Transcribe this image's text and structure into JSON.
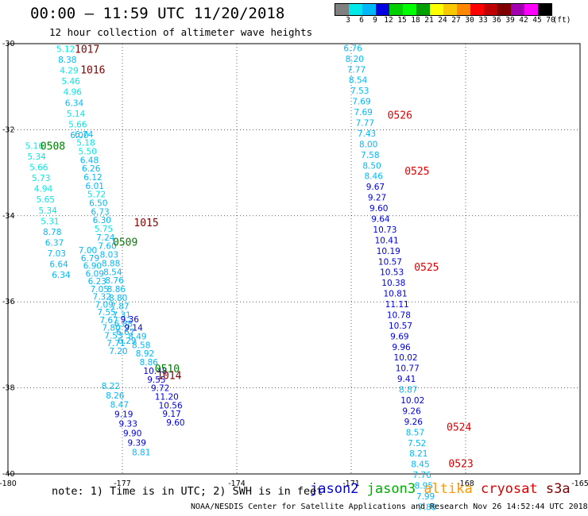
{
  "header": {
    "title": "00:00 – 11:59 UTC 11/20/2018",
    "subtitle": "12 hour collection of altimeter wave heights"
  },
  "colorbar": {
    "colors": [
      "#808080",
      "#00e8e8",
      "#00b8f8",
      "#0000e0",
      "#00d000",
      "#00ff00",
      "#00a000",
      "#ffff00",
      "#f8c800",
      "#ff8800",
      "#ff0000",
      "#c00000",
      "#800000",
      "#a000b0",
      "#ff00ff",
      "#000000"
    ],
    "labels": [
      "3",
      "6",
      "9",
      "12",
      "15",
      "18",
      "21",
      "24",
      "27",
      "30",
      "33",
      "36",
      "39",
      "42",
      "45",
      "70",
      "(ft)"
    ]
  },
  "chart_data": {
    "type": "scatter",
    "xlim": [
      -180,
      -165
    ],
    "ylim": [
      -40,
      -30
    ],
    "xticks": [
      "-180",
      "-177",
      "-174",
      "-171",
      "-168",
      "-165"
    ],
    "yticks": [
      "-30",
      "-32",
      "-34",
      "-36",
      "-38",
      "-40"
    ],
    "pass_labels": [
      {
        "text": "1017",
        "lon": -178.25,
        "lat": -30.12,
        "color": "#800000"
      },
      {
        "text": "1016",
        "lon": -178.1,
        "lat": -30.6,
        "color": "#800000"
      },
      {
        "text": "0508",
        "lon": -179.15,
        "lat": -32.37,
        "color": "#008000"
      },
      {
        "text": "1015",
        "lon": -176.7,
        "lat": -34.15,
        "color": "#800000"
      },
      {
        "text": "0509",
        "lon": -177.25,
        "lat": -34.6,
        "color": "#008000"
      },
      {
        "text": "0510",
        "lon": -176.15,
        "lat": -37.55,
        "color": "#008000"
      },
      {
        "text": "1014",
        "lon": -176.1,
        "lat": -37.7,
        "color": "#800000"
      },
      {
        "text": "0526",
        "lon": -170.05,
        "lat": -31.65,
        "color": "#dd0000"
      },
      {
        "text": "0525",
        "lon": -169.6,
        "lat": -32.95,
        "color": "#dd0000"
      },
      {
        "text": "0525",
        "lon": -169.35,
        "lat": -35.18,
        "color": "#dd0000"
      },
      {
        "text": "0524",
        "lon": -168.5,
        "lat": -38.9,
        "color": "#dd0000"
      },
      {
        "text": "0523",
        "lon": -168.45,
        "lat": -39.75,
        "color": "#dd0000"
      }
    ],
    "tracks": [
      {
        "id": "jason3_1017_1016",
        "lat_start": -30.12,
        "lat_step": 0.25,
        "lon_start": -178.73,
        "lon_end": -178.37,
        "values": [
          "5.12",
          "8.38",
          "4.29",
          "5.46",
          "4.96",
          "6.34",
          "5.14",
          "5.66",
          "6.00"
        ]
      },
      {
        "id": "jason3_0508",
        "lat_start": -32.37,
        "lat_step": 0.25,
        "lon_start": -179.55,
        "lon_end": -178.85,
        "values": [
          "5.16",
          "5.34",
          "5.66",
          "5.73",
          "4.94",
          "5.65",
          "5.34",
          "5.31",
          "8.78",
          "6.37",
          "7.03",
          "6.64",
          "6.34"
        ]
      },
      {
        "id": "jason3_1015",
        "lat_start": -32.1,
        "lat_step": 0.2,
        "lon_start": -178.25,
        "lon_end": -177.12,
        "values": [
          "6.74",
          "5.18",
          "5.50",
          "6.48",
          "6.26",
          "6.12",
          "6.01",
          "5.72",
          "6.50",
          "6.73",
          "6.30",
          "5.75",
          "7.24",
          "7.60",
          "8.03",
          "8.88",
          "8.54",
          "8.76",
          "8.86",
          "8.80",
          "7.87",
          "7.31",
          "6.88",
          "6.67",
          "6.29"
        ]
      },
      {
        "id": "jason3_0509",
        "lat_start": -34.8,
        "lat_step": 0.18,
        "lon_start": -178.15,
        "lon_end": -177.35,
        "values": [
          "7.00",
          "6.79",
          "6.90",
          "6.09",
          "6.23",
          "7.05",
          "7.32",
          "7.09",
          "7.55",
          "7.67",
          "7.80",
          "7.53",
          "7.71",
          "7.20"
        ]
      },
      {
        "id": "jason2_0510",
        "lat_start": -36.4,
        "lat_step": 0.2,
        "lon_start": -177.05,
        "lon_end": -175.85,
        "values": [
          "9.36",
          "9.14",
          "8.49",
          "8.58",
          "8.92",
          "8.86",
          "10.48",
          "9.55",
          "9.72",
          "11.20",
          "10.56",
          "9.17",
          "9.60"
        ]
      },
      {
        "id": "jason2_1014",
        "lat_start": -37.95,
        "lat_step": 0.22,
        "lon_start": -177.55,
        "lon_end": -176.75,
        "values": [
          "8.22",
          "8.26",
          "8.47",
          "9.19",
          "9.33",
          "9.90",
          "9.39",
          "8.81"
        ]
      },
      {
        "id": "cryosat_0526_0523",
        "lat_start": -30.1,
        "lat_step": 0.248,
        "lon_start": -171.2,
        "lon_end": -169.25,
        "values": [
          "6.76",
          "8.20",
          "7.77",
          "8.54",
          "7.53",
          "7.69",
          "7.69",
          "7.77",
          "7.43",
          "8.00",
          "7.58",
          "8.50",
          "8.46",
          "9.67",
          "9.27",
          "9.60",
          "9.64",
          "10.73",
          "10.41",
          "10.19",
          "10.57",
          "10.53",
          "10.38",
          "10.81",
          "11.11",
          "10.78",
          "10.57",
          "9.69",
          "9.96",
          "10.02",
          "10.77",
          "9.41",
          "8.87",
          "10.02",
          "9.26",
          "9.26",
          "8.57",
          "7.52",
          "8.21",
          "8.45",
          "7.76",
          "8.95",
          "7.99",
          "7.88"
        ]
      }
    ]
  },
  "footnote": "note: 1) Time is in UTC; 2) SWH is in feet",
  "legend": [
    {
      "text": "jason2",
      "color": "#0000dd"
    },
    {
      "text": "jason3",
      "color": "#00aa00"
    },
    {
      "text": "altika",
      "color": "#ff9900"
    },
    {
      "text": "cryosat",
      "color": "#dd0000"
    },
    {
      "text": "s3a",
      "color": "#800000"
    }
  ],
  "credit": "NOAA/NESDIS Center for Satellite Applications and Research   Nov 26 14:52:44 UTC 2018"
}
